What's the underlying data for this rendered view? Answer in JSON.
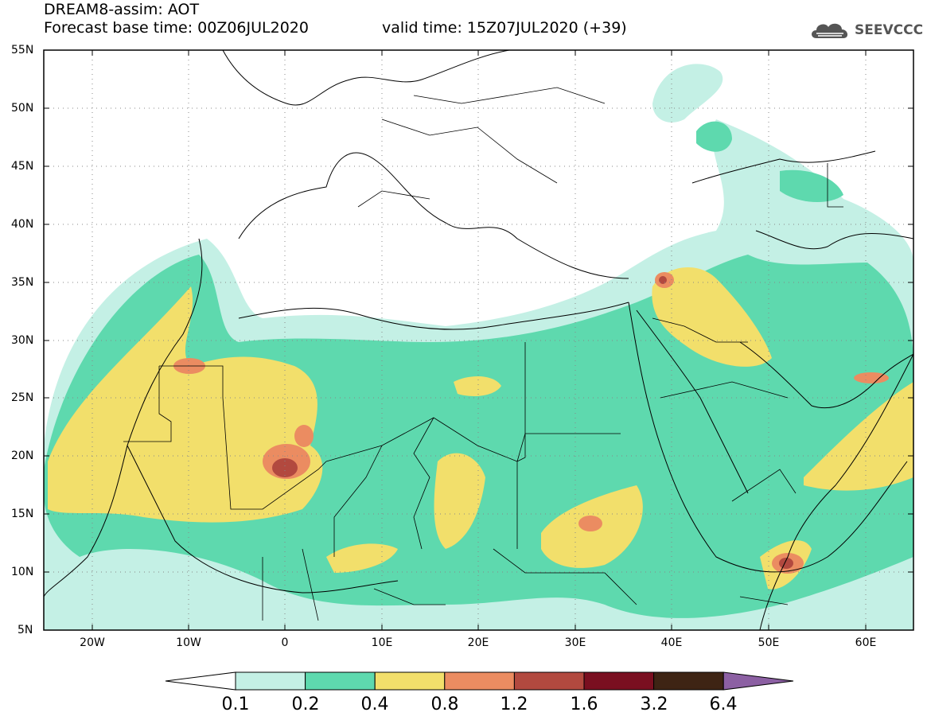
{
  "header": {
    "title": "DREAM8-assim: AOT",
    "base_time": "Forecast base time: 00Z06JUL2020",
    "valid_time": "valid time: 15Z07JUL2020 (+39)"
  },
  "logo": {
    "text": "SEEVCCC",
    "icon": "cloud-logo-icon",
    "color": "#555555"
  },
  "map": {
    "lat_labels": [
      "55N",
      "50N",
      "45N",
      "40N",
      "35N",
      "30N",
      "25N",
      "20N",
      "15N",
      "10N",
      "5N"
    ],
    "lon_labels": [
      "20W",
      "10W",
      "0",
      "10E",
      "20E",
      "30E",
      "40E",
      "50E",
      "60E"
    ],
    "lat_range": [
      5,
      55
    ],
    "lon_range": [
      -25,
      65
    ],
    "grid": "dotted"
  },
  "colorbar": {
    "labels": [
      "0.1",
      "0.2",
      "0.4",
      "0.8",
      "1.2",
      "1.6",
      "3.2",
      "6.4"
    ],
    "colors": [
      "#ffffff",
      "#c4f0e5",
      "#5ed9ae",
      "#f2df6b",
      "#eb8c61",
      "#b2493f",
      "#7a0f20",
      "#3e2414",
      "#8c60a3"
    ]
  }
}
